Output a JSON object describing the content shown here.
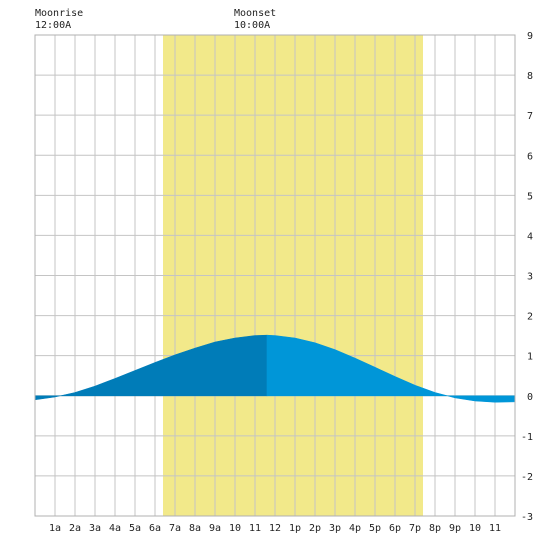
{
  "header": {
    "moonrise_label": "Moonrise",
    "moonrise_time": "12:00A",
    "moonset_label": "Moonset",
    "moonset_time": "10:00A"
  },
  "chart_data": {
    "type": "area",
    "title": "",
    "xlabel": "",
    "ylabel": "",
    "x_unit": "hour of day",
    "xlim": [
      0,
      24
    ],
    "ylim": [
      -3,
      9
    ],
    "grid": true,
    "x_tick_labels": [
      "1a",
      "2a",
      "3a",
      "4a",
      "5a",
      "6a",
      "7a",
      "8a",
      "9a",
      "10",
      "11",
      "12",
      "1p",
      "2p",
      "3p",
      "4p",
      "5p",
      "6p",
      "7p",
      "8p",
      "9p",
      "10",
      "11"
    ],
    "y_ticks": [
      -3,
      -2,
      -1,
      0,
      1,
      2,
      3,
      4,
      5,
      6,
      7,
      8,
      9
    ],
    "daylight": {
      "start": 6.4,
      "end": 19.4,
      "color": "#f2e98a"
    },
    "tide_colors": {
      "rising": "#007cb8",
      "falling": "#0096d8"
    },
    "peak_x": 11.6,
    "series": [
      {
        "x": [
          0,
          1,
          2,
          3,
          4,
          5,
          6,
          7,
          8,
          9,
          10,
          11,
          11.6,
          12,
          13,
          14,
          15,
          16,
          17,
          18,
          19,
          20,
          21,
          22,
          23,
          24
        ],
        "values": [
          -0.1,
          -0.03,
          0.08,
          0.24,
          0.43,
          0.63,
          0.83,
          1.02,
          1.19,
          1.34,
          1.44,
          1.5,
          1.51,
          1.5,
          1.44,
          1.32,
          1.15,
          0.94,
          0.71,
          0.48,
          0.26,
          0.08,
          -0.05,
          -0.13,
          -0.16,
          -0.15
        ]
      }
    ]
  }
}
